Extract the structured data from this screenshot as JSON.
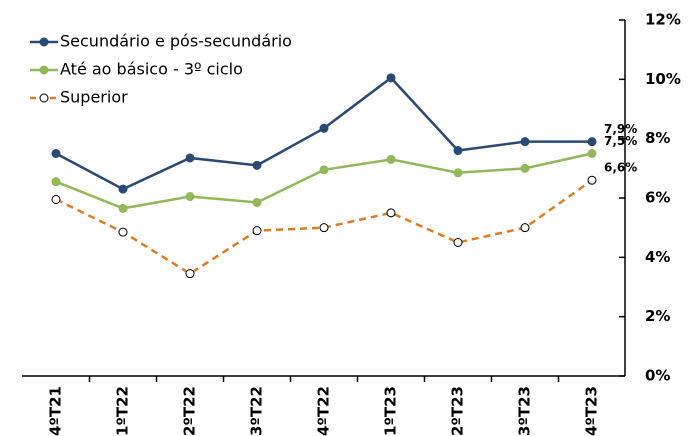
{
  "chart_data": {
    "type": "line",
    "categories": [
      "4ºT21",
      "1ºT22",
      "2ºT22",
      "3ºT22",
      "4ºT22",
      "1ºT23",
      "2ºT23",
      "3ºT23",
      "4ºT23"
    ],
    "series": [
      {
        "name": "Secundário e pós-secundário",
        "color": "#2b4a73",
        "line_style": "solid",
        "marker_fill": "#2b4a73",
        "values": [
          7.5,
          6.3,
          7.35,
          7.1,
          8.35,
          10.05,
          7.6,
          7.9,
          7.9
        ],
        "value_labels": [
          null,
          null,
          null,
          null,
          null,
          null,
          null,
          null,
          "7,9%"
        ]
      },
      {
        "name": "Até ao básico - 3º ciclo",
        "color": "#92b85a",
        "line_style": "solid",
        "marker_fill": "#92b85a",
        "values": [
          6.55,
          5.65,
          6.05,
          5.85,
          6.95,
          7.3,
          6.85,
          7.0,
          7.5
        ],
        "value_labels": [
          null,
          null,
          null,
          null,
          null,
          null,
          null,
          null,
          "7,5%"
        ]
      },
      {
        "name": "Superior",
        "color": "#e07b22",
        "line_style": "dashed",
        "marker_fill": "#ffffff",
        "values": [
          5.95,
          4.85,
          3.45,
          4.9,
          5.0,
          5.5,
          4.5,
          5.0,
          6.6
        ],
        "value_labels": [
          null,
          null,
          null,
          null,
          null,
          null,
          null,
          null,
          "6,6%"
        ]
      }
    ],
    "ylim": [
      0,
      12
    ],
    "yticks": [
      {
        "value": 0,
        "label": "0%"
      },
      {
        "value": 2,
        "label": "2%"
      },
      {
        "value": 4,
        "label": "4%"
      },
      {
        "value": 6,
        "label": "6%"
      },
      {
        "value": 8,
        "label": "8%"
      },
      {
        "value": 10,
        "label": "10%"
      },
      {
        "value": 12,
        "label": "12%"
      }
    ],
    "y_axis_side": "right",
    "legend": "top-left",
    "grid": false
  }
}
